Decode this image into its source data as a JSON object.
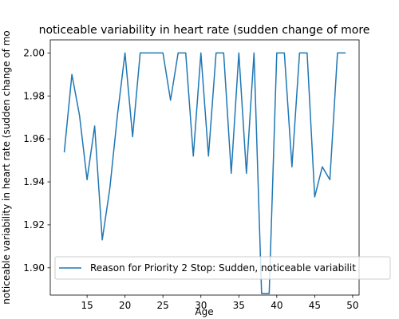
{
  "chart_data": {
    "type": "line",
    "title": "noticeable variability in heart rate (sudden change of more",
    "xlabel": "Age",
    "ylabel": "noticeable variability in heart rate (sudden change of mo",
    "xlim": [
      10.15,
      50.85
    ],
    "ylim": [
      1.8873,
      2.0061
    ],
    "xticks": [
      15,
      20,
      25,
      30,
      35,
      40,
      45,
      50
    ],
    "yticks": [
      1.9,
      1.92,
      1.94,
      1.96,
      1.98,
      2.0
    ],
    "xtick_labels": [
      "15",
      "20",
      "25",
      "30",
      "35",
      "40",
      "45",
      "50"
    ],
    "ytick_labels": [
      "1.90",
      "1.92",
      "1.94",
      "1.96",
      "1.98",
      "2.00"
    ],
    "grid": false,
    "legend_position": "lower-left",
    "series": [
      {
        "name": "Reason for Priority 2 Stop: Sudden, noticeable variabilit",
        "color": "#1f77b4",
        "x": [
          12,
          13,
          14,
          15,
          16,
          17,
          18,
          19,
          20,
          21,
          22,
          23,
          24,
          25,
          26,
          27,
          28,
          29,
          30,
          31,
          32,
          33,
          34,
          35,
          36,
          37,
          38,
          39,
          40,
          41,
          42,
          43,
          44,
          45,
          46,
          47,
          48,
          49
        ],
        "y": [
          1.954,
          1.99,
          1.971,
          1.941,
          1.966,
          1.913,
          1.937,
          1.971,
          2.0,
          1.961,
          2.0,
          2.0,
          2.0,
          2.0,
          1.978,
          2.0,
          2.0,
          1.952,
          2.0,
          1.952,
          2.0,
          2.0,
          1.944,
          2.0,
          1.944,
          2.0,
          1.888,
          1.888,
          2.0,
          2.0,
          1.947,
          2.0,
          2.0,
          1.933,
          1.947,
          1.941,
          2.0,
          2.0
        ]
      }
    ]
  }
}
